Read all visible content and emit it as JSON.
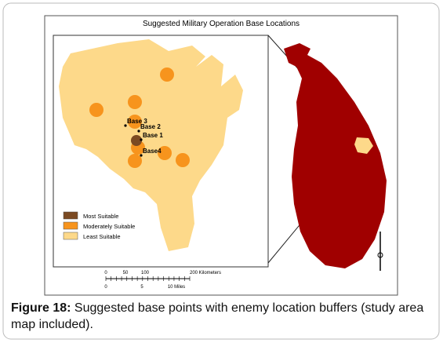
{
  "title": "Suggested Military Operation Base Locations",
  "bases": [
    {
      "label": "Base 3"
    },
    {
      "label": "Base 2"
    },
    {
      "label": "Base 1"
    },
    {
      "label": "Base4"
    }
  ],
  "legend": [
    {
      "label": "Most Suitable",
      "color": "#7b4a22"
    },
    {
      "label": "Moderately Suitable",
      "color": "#f7941d"
    },
    {
      "label": "Least Suitable",
      "color": "#fdd98a"
    }
  ],
  "country_color": "#a00000",
  "scale": {
    "km_labels": [
      "0",
      "50",
      "100",
      "200 Kilometers"
    ],
    "mile_labels": [
      "0",
      "5",
      "10 Miles"
    ]
  },
  "caption": {
    "label": "Figure 18:",
    "text": "Suggested base points with enemy location buffers (study area map included)."
  }
}
